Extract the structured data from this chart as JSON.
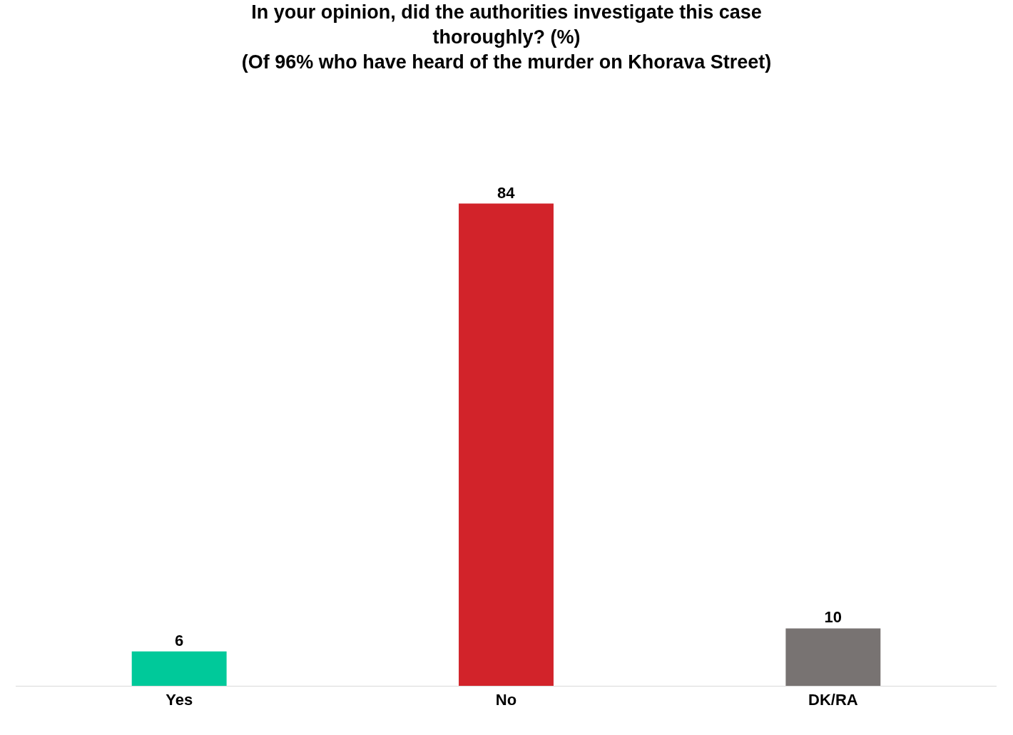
{
  "chart_data": {
    "type": "bar",
    "title": "In your opinion, did the authorities investigate this case thoroughly? (%)",
    "subtitle": "(Of 96% who have heard of the murder on Khorava Street)",
    "categories": [
      "Yes",
      "No",
      "DK/RA"
    ],
    "values": [
      6,
      84,
      10
    ],
    "colors": [
      "#00c99a",
      "#d2232a",
      "#787372"
    ],
    "data_labels": true,
    "legend": false
  }
}
